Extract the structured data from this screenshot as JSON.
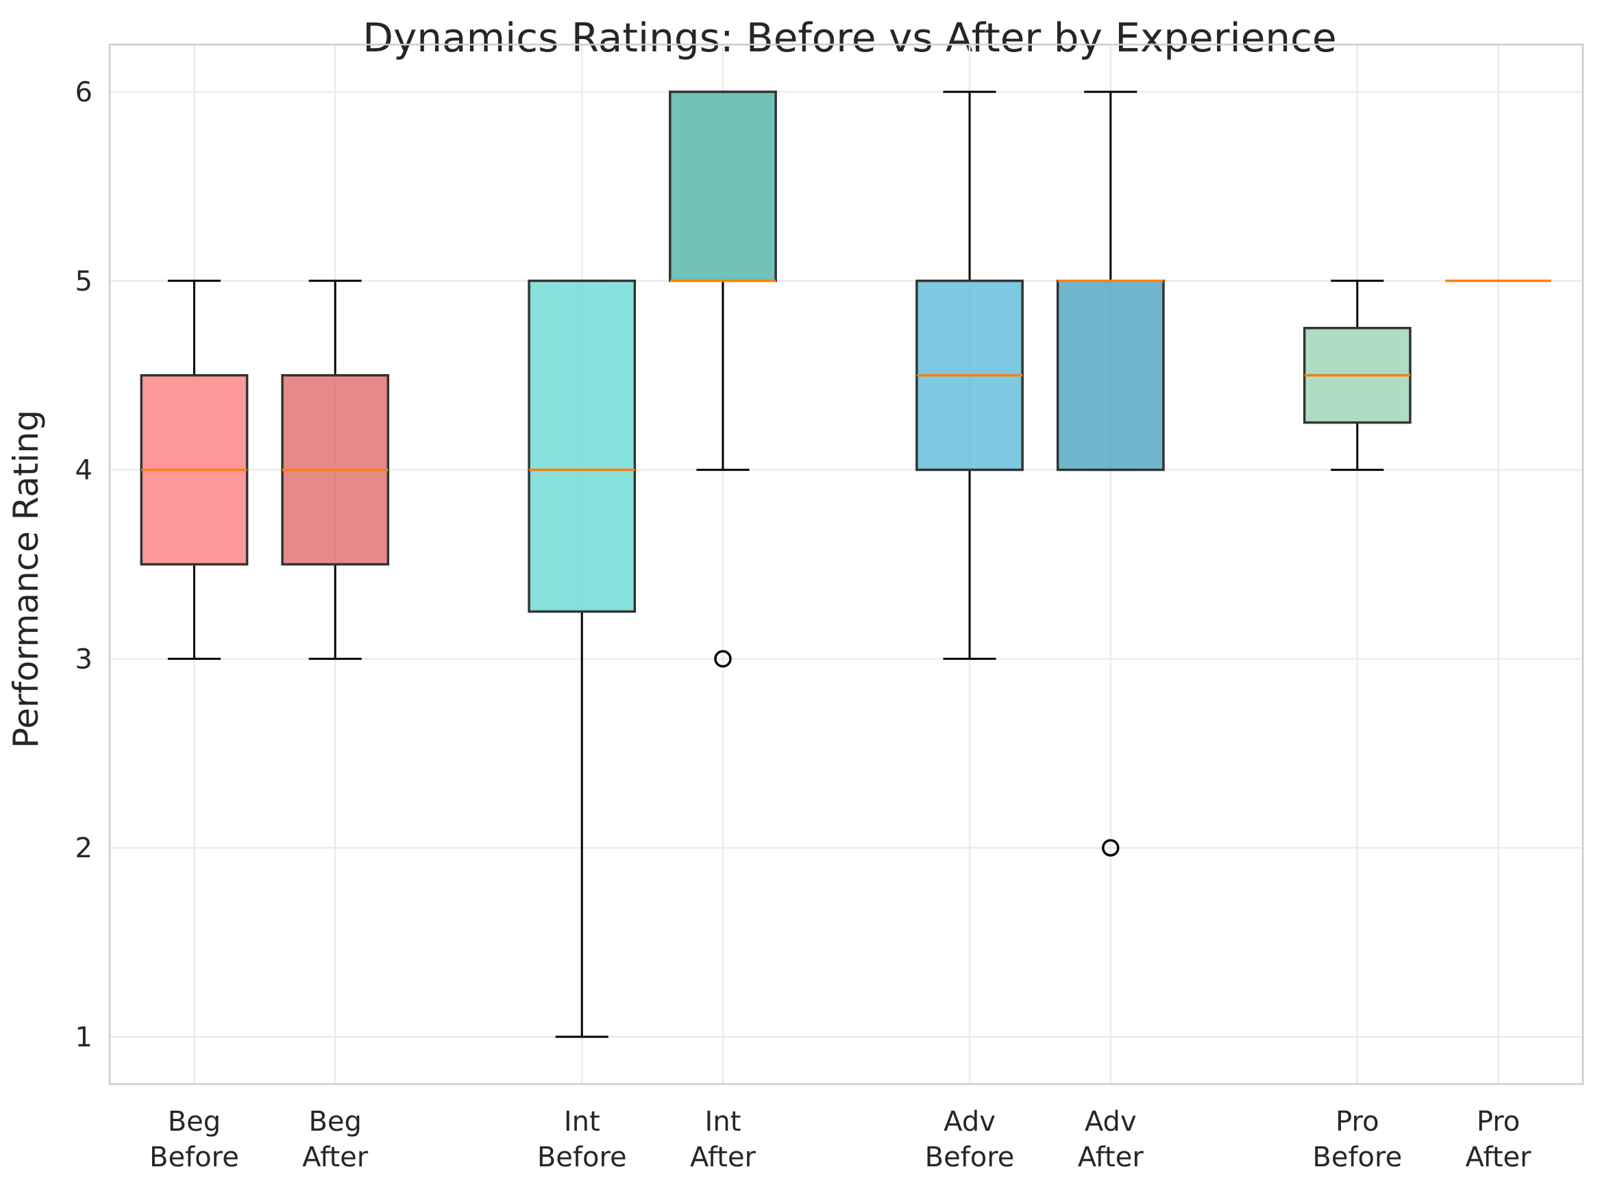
{
  "chart_data": {
    "type": "box",
    "title": "Dynamics Ratings: Before vs After by Experience",
    "xlabel": "",
    "ylabel": "Performance Rating",
    "ylim": [
      0.75,
      6.25
    ],
    "yticks": [
      1,
      2,
      3,
      4,
      5,
      6
    ],
    "grid": true,
    "boxes": [
      {
        "label": [
          "Beg",
          "Before"
        ],
        "pos": 1.0,
        "color": "#ff8080",
        "whisker_low": 3,
        "q1": 3.5,
        "median": 4,
        "q3": 4.5,
        "whisker_high": 5,
        "outliers": []
      },
      {
        "label": [
          "Beg",
          "After"
        ],
        "pos": 2.0,
        "color": "#e06c6c",
        "whisker_low": 3,
        "q1": 3.5,
        "median": 4,
        "q3": 4.5,
        "whisker_high": 5,
        "outliers": []
      },
      {
        "label": [
          "Int",
          "Before"
        ],
        "pos": 3.75,
        "color": "#66d9cf",
        "whisker_low": 1,
        "q1": 3.25,
        "median": 4,
        "q3": 5,
        "whisker_high": 5,
        "outliers": []
      },
      {
        "label": [
          "Int",
          "After"
        ],
        "pos": 4.75,
        "color": "#4db3a6",
        "whisker_low": 4,
        "q1": 5,
        "median": 5,
        "q3": 6,
        "whisker_high": 6,
        "outliers": [
          3
        ]
      },
      {
        "label": [
          "Adv",
          "Before"
        ],
        "pos": 6.5,
        "color": "#5bbcd9",
        "whisker_low": 3,
        "q1": 4,
        "median": 4.5,
        "q3": 5,
        "whisker_high": 6,
        "outliers": []
      },
      {
        "label": [
          "Adv",
          "After"
        ],
        "pos": 7.5,
        "color": "#4ca3c2",
        "whisker_low": 4,
        "q1": 4,
        "median": 5,
        "q3": 5,
        "whisker_high": 6,
        "outliers": [
          2
        ]
      },
      {
        "label": [
          "Pro",
          "Before"
        ],
        "pos": 9.25,
        "color": "#9ad4b8",
        "whisker_low": 4,
        "q1": 4.25,
        "median": 4.5,
        "q3": 4.75,
        "whisker_high": 5,
        "outliers": []
      },
      {
        "label": [
          "Pro",
          "After"
        ],
        "pos": 10.25,
        "color": "#88c7a8",
        "whisker_low": 5,
        "q1": 5,
        "median": 5,
        "q3": 5,
        "whisker_high": 5,
        "outliers": []
      }
    ]
  }
}
